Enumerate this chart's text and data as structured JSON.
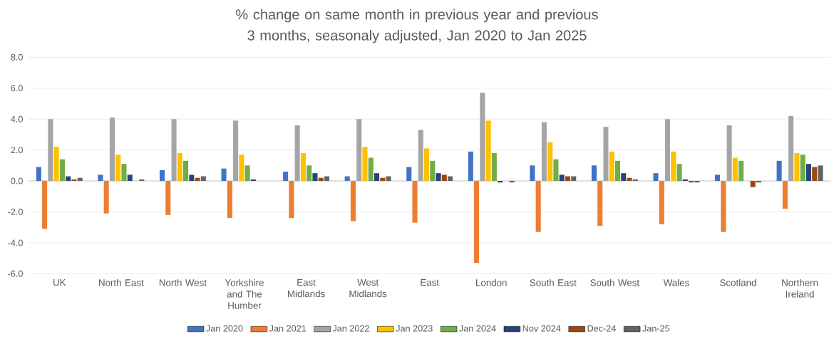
{
  "chart_data": {
    "type": "bar",
    "title": "% change on same month in previous year and previous 3 months, seasonaly adjusted, Jan 2020 to Jan 2025",
    "categories": [
      "UK",
      "North East",
      "North West",
      "Yorkshire and The Humber",
      "East Midlands",
      "West Midlands",
      "East",
      "London",
      "South East",
      "South West",
      "Wales",
      "Scotland",
      "Northern Ireland"
    ],
    "series": [
      {
        "name": "Jan 2020",
        "color": "#4472c4",
        "values": [
          0.9,
          0.4,
          0.7,
          0.8,
          0.6,
          0.3,
          0.9,
          1.9,
          1.0,
          1.0,
          0.5,
          0.4,
          1.3
        ]
      },
      {
        "name": "Jan 2021",
        "color": "#ed7d31",
        "values": [
          -3.1,
          -2.1,
          -2.2,
          -2.4,
          -2.4,
          -2.6,
          -2.7,
          -5.3,
          -3.3,
          -2.9,
          -2.8,
          -3.3,
          -1.8
        ]
      },
      {
        "name": "Jan 2022",
        "color": "#a5a5a5",
        "values": [
          4.0,
          4.1,
          4.0,
          3.9,
          3.6,
          4.0,
          3.3,
          5.7,
          3.8,
          3.5,
          4.0,
          3.6,
          4.2
        ]
      },
      {
        "name": "Jan 2023",
        "color": "#ffc000",
        "values": [
          2.2,
          1.7,
          1.8,
          1.7,
          1.8,
          2.2,
          2.1,
          3.9,
          2.5,
          1.9,
          1.9,
          1.5,
          1.8
        ]
      },
      {
        "name": "Jan 2024",
        "color": "#70ad47",
        "values": [
          1.4,
          1.1,
          1.3,
          1.0,
          1.0,
          1.5,
          1.3,
          1.8,
          1.4,
          1.3,
          1.1,
          1.3,
          1.7
        ]
      },
      {
        "name": "Nov 2024",
        "color": "#264478",
        "values": [
          0.3,
          0.4,
          0.4,
          0.1,
          0.5,
          0.5,
          0.5,
          -0.1,
          0.4,
          0.5,
          0.1,
          0.0,
          1.1
        ]
      },
      {
        "name": "Dec-24",
        "color": "#9e480e",
        "values": [
          0.1,
          0.0,
          0.2,
          0.0,
          0.2,
          0.2,
          0.4,
          0.0,
          0.3,
          0.2,
          -0.1,
          -0.4,
          0.9
        ]
      },
      {
        "name": "Jan-25",
        "color": "#636363",
        "values": [
          0.2,
          0.1,
          0.3,
          0.0,
          0.3,
          0.3,
          0.3,
          -0.1,
          0.3,
          0.1,
          -0.1,
          -0.1,
          1.0
        ]
      }
    ],
    "ylim": [
      -6,
      8
    ],
    "yticks": [
      {
        "value": -6,
        "label": "-6.0"
      },
      {
        "value": -4,
        "label": "-4.0"
      },
      {
        "value": -2,
        "label": "-2.0"
      },
      {
        "value": 0,
        "label": "0.0"
      },
      {
        "value": 2,
        "label": "2.0"
      },
      {
        "value": 4,
        "label": "4.0"
      },
      {
        "value": 6,
        "label": "6.0"
      },
      {
        "value": 8,
        "label": "8.0"
      }
    ],
    "grid": "y",
    "legend": "bottom"
  }
}
